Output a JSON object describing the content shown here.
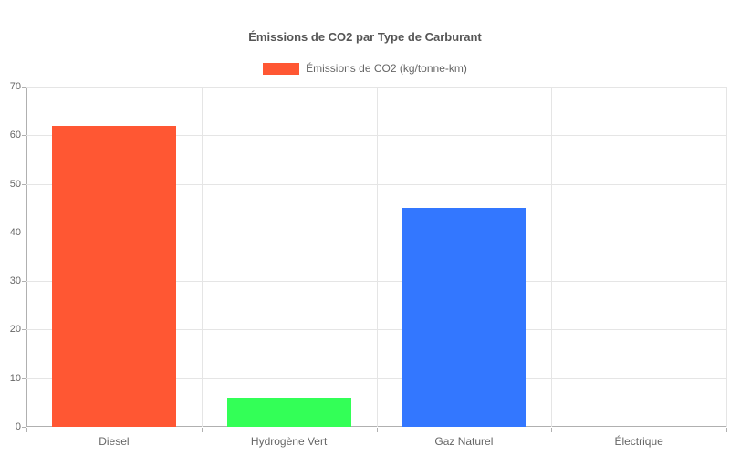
{
  "chart_data": {
    "type": "bar",
    "title": "Émissions de CO2 par Type de Carburant",
    "categories": [
      "Diesel",
      "Hydrogène Vert",
      "Gaz Naturel",
      "Électrique"
    ],
    "series": [
      {
        "name": "Émissions de CO2 (kg/tonne-km)",
        "values": [
          62,
          6,
          45,
          0
        ],
        "bar_colors": [
          "#FF5733",
          "#33FF57",
          "#3377FF",
          null
        ]
      }
    ],
    "legend": {
      "position": "top",
      "label": "Émissions de CO2 (kg/tonne-km)",
      "swatch_color": "#FF5733"
    },
    "xlabel": "",
    "ylabel": "",
    "ylim": [
      0,
      70
    ],
    "ytick_step": 10,
    "yticks": [
      0,
      10,
      20,
      30,
      40,
      50,
      60,
      70
    ],
    "grid": true,
    "colors": {
      "grid_line": "#e5e5e5",
      "axis_line": "#b0b0b0",
      "tick_text": "#666666",
      "title_text": "#555555",
      "background": "#ffffff"
    }
  }
}
